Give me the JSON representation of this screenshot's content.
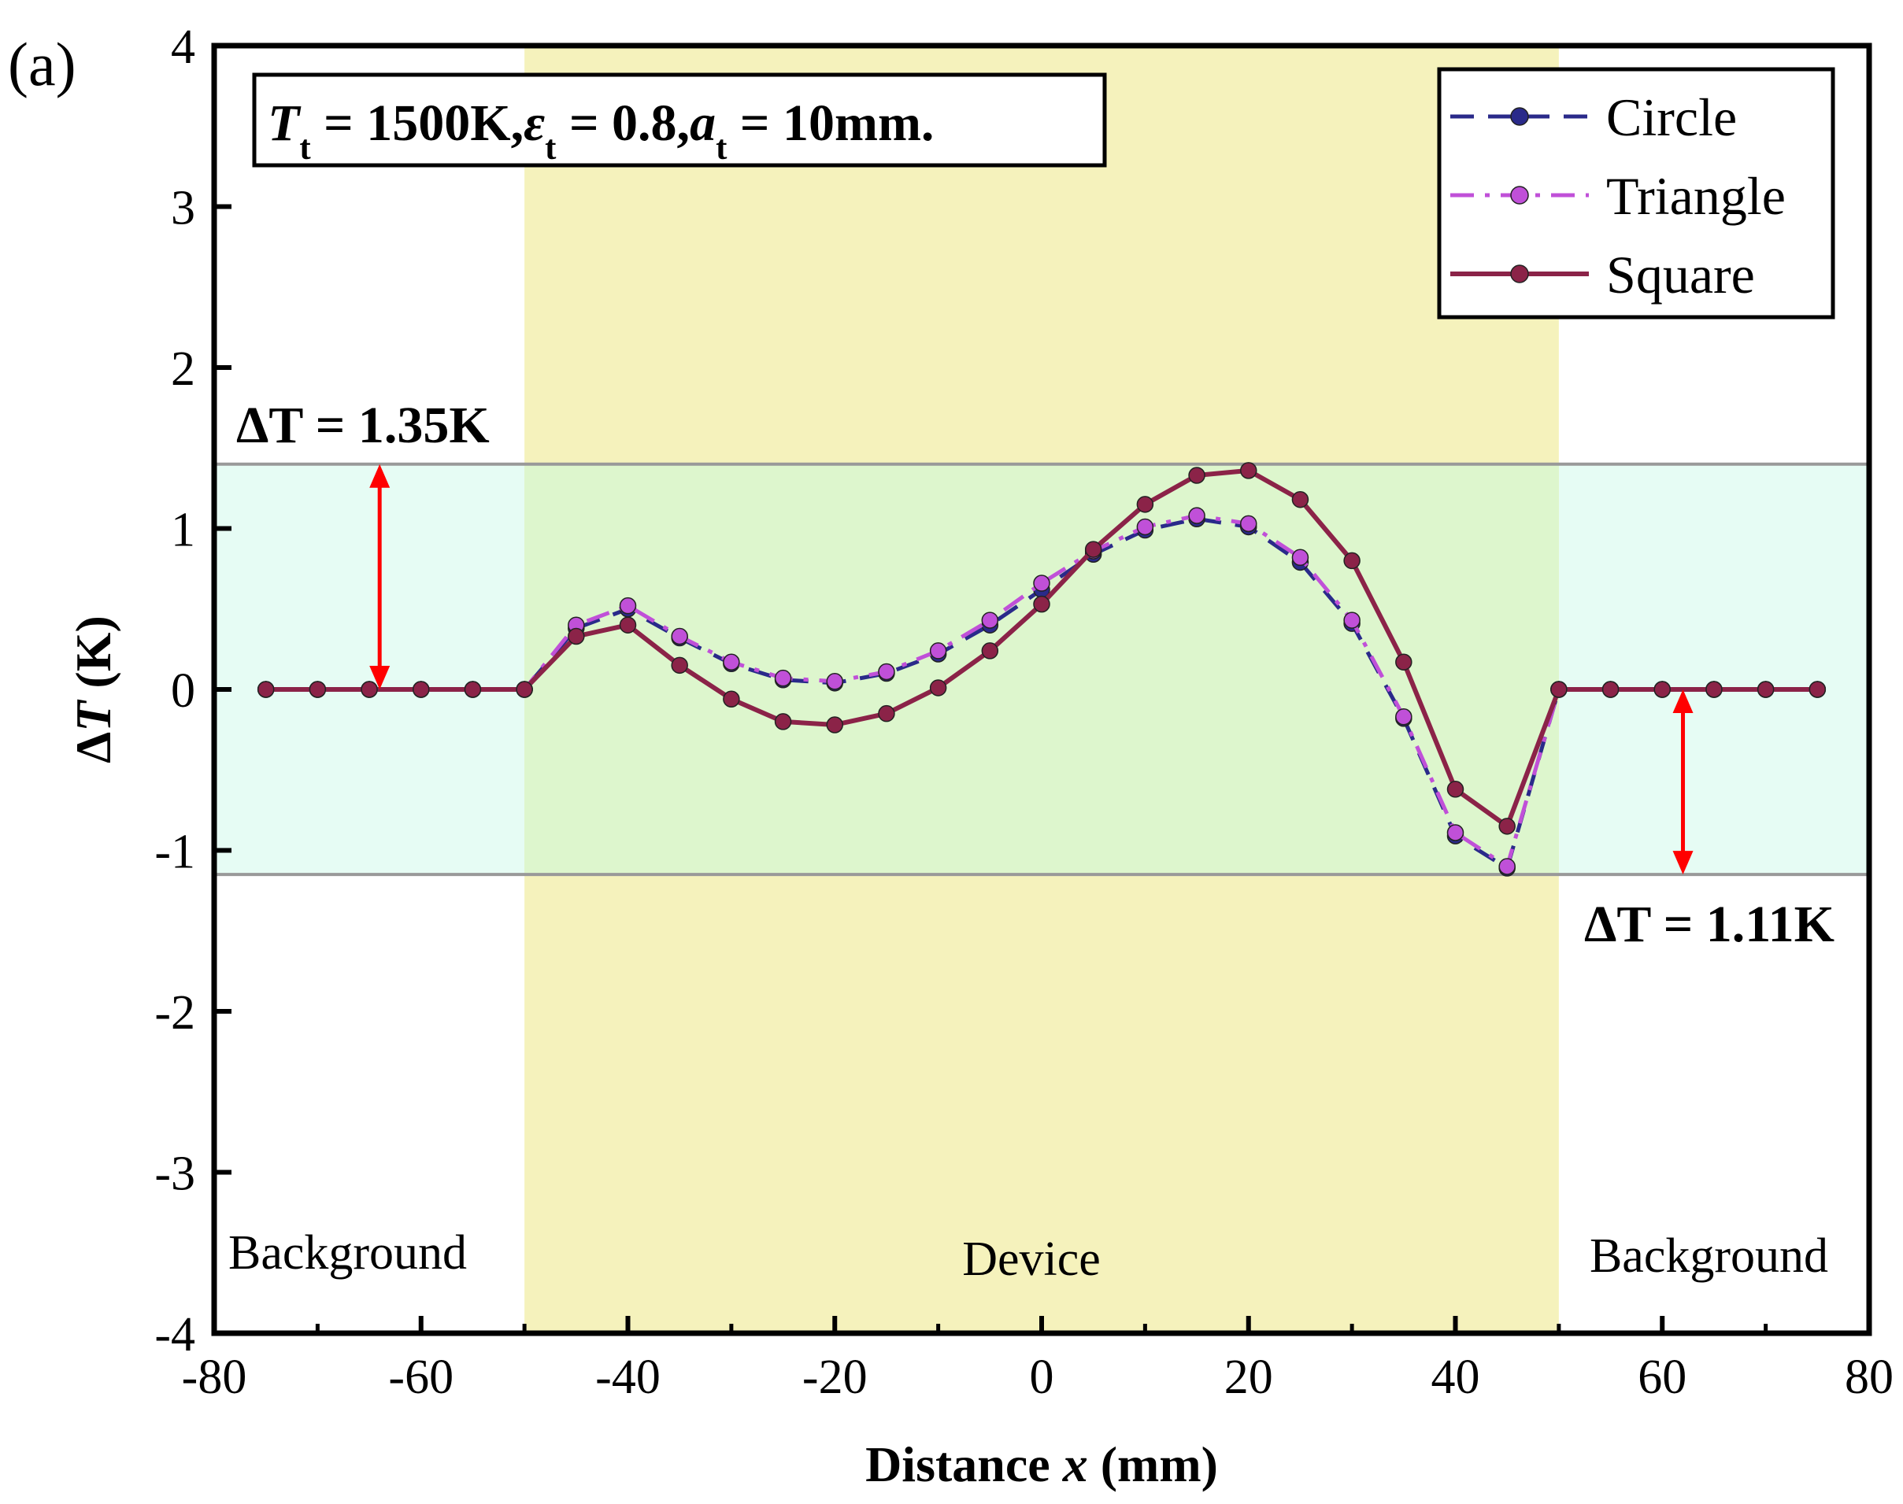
{
  "panel_label": "(a)",
  "params_label": "Tt = 1500K, εt = 0.8, at = 10mm.",
  "params_parts": [
    "T",
    "t",
    " = 1500K,",
    "ε",
    "t",
    " = 0.8,",
    "a",
    "t",
    " = 10mm."
  ],
  "annotations": {
    "upper": "ΔT = 1.35K",
    "lower": "ΔT = 1.11K",
    "upper_value": 1.35,
    "lower_value": 1.11
  },
  "regions": {
    "left": "Background",
    "center": "Device",
    "right": "Background"
  },
  "colors": {
    "device_band": "#f5f2bc",
    "tolerance_band": "#e6fcf4",
    "band_edge": "#999999",
    "arrow": "#ff0000",
    "circle": "#2a2a8a",
    "triangle": "#c050d8",
    "square": "#8b2348"
  },
  "chart_data": {
    "type": "line",
    "xlabel": "Distance x (mm)",
    "xlabel_parts": [
      "Distance ",
      "x",
      " (mm)"
    ],
    "ylabel": "ΔT (K)",
    "ylabel_parts": [
      "Δ",
      "T",
      " (K)"
    ],
    "xlim": [
      -80,
      80
    ],
    "ylim": [
      -4,
      4
    ],
    "xticks": [
      -80,
      -60,
      -40,
      -20,
      0,
      20,
      40,
      60,
      80
    ],
    "xticks_minor": [
      -70,
      -50,
      -30,
      -10,
      10,
      30,
      50,
      70
    ],
    "yticks": [
      -4,
      -3,
      -2,
      -1,
      0,
      1,
      2,
      3,
      4
    ],
    "grid": false,
    "legend": "top-right",
    "device_region": [
      -50,
      50
    ],
    "tolerance_band": [
      -1.15,
      1.4
    ],
    "x": [
      -75,
      -70,
      -65,
      -60,
      -55,
      -50,
      -45,
      -40,
      -35,
      -30,
      -25,
      -20,
      -15,
      -10,
      -5,
      0,
      5,
      10,
      15,
      20,
      25,
      30,
      35,
      40,
      45,
      50,
      55,
      60,
      65,
      70,
      75
    ],
    "series": [
      {
        "name": "Circle",
        "style": "dashed",
        "values": [
          0,
          0,
          0,
          0,
          0,
          0,
          0.38,
          0.5,
          0.32,
          0.16,
          0.06,
          0.04,
          0.1,
          0.22,
          0.4,
          0.62,
          0.84,
          0.99,
          1.06,
          1.01,
          0.79,
          0.41,
          -0.18,
          -0.91,
          -1.11,
          0,
          0,
          0,
          0,
          0,
          0
        ]
      },
      {
        "name": "Triangle",
        "style": "dashdot",
        "values": [
          0,
          0,
          0,
          0,
          0,
          0,
          0.4,
          0.52,
          0.33,
          0.17,
          0.07,
          0.05,
          0.11,
          0.24,
          0.43,
          0.66,
          0.86,
          1.01,
          1.08,
          1.03,
          0.82,
          0.43,
          -0.17,
          -0.89,
          -1.1,
          0,
          0,
          0,
          0,
          0,
          0
        ]
      },
      {
        "name": "Square",
        "style": "solid",
        "values": [
          0,
          0,
          0,
          0,
          0,
          0,
          0.33,
          0.4,
          0.15,
          -0.06,
          -0.2,
          -0.22,
          -0.15,
          0.01,
          0.24,
          0.53,
          0.87,
          1.15,
          1.33,
          1.36,
          1.18,
          0.8,
          0.17,
          -0.62,
          -0.85,
          0,
          0,
          0,
          0,
          0,
          0
        ]
      }
    ]
  }
}
